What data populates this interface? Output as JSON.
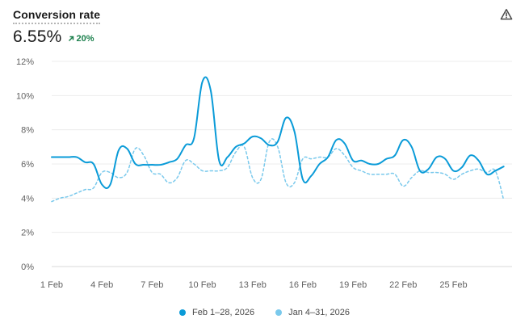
{
  "header": {
    "title": "Conversion rate",
    "value": "6.55%",
    "change": "20%",
    "warning_icon": "warning-triangle-icon",
    "change_icon": "arrow-up-right-icon",
    "change_color": "#1a7f4b"
  },
  "chart_data": {
    "type": "line",
    "title": "Conversion rate",
    "xlabel": "",
    "ylabel": "",
    "y_ticks": [
      "0%",
      "2%",
      "4%",
      "6%",
      "8%",
      "10%",
      "12%"
    ],
    "ylim": [
      0,
      12
    ],
    "x_ticks": [
      "1 Feb",
      "4 Feb",
      "7 Feb",
      "10 Feb",
      "13 Feb",
      "16 Feb",
      "19 Feb",
      "22 Feb",
      "25 Feb"
    ],
    "grid": true,
    "legend_position": "bottom-center",
    "series": [
      {
        "name": "Feb 1–28, 2026",
        "style": "solid",
        "color": "#0a9bd8",
        "x": [
          1.0,
          1.5,
          2.0,
          2.5,
          3.0,
          3.5,
          4.0,
          4.5,
          5.0,
          5.5,
          6.0,
          6.5,
          7.0,
          7.5,
          8.0,
          8.5,
          9.0,
          9.5,
          10.0,
          10.5,
          11.0,
          11.5,
          12.0,
          12.5,
          13.0,
          13.5,
          14.0,
          14.5,
          15.0,
          15.5,
          16.0,
          16.5,
          17.0,
          17.5,
          18.0,
          18.5,
          19.0,
          19.5,
          20.0,
          20.5,
          21.0,
          21.5,
          22.0,
          22.5,
          23.0,
          23.5,
          24.0,
          24.5,
          25.0,
          25.5,
          26.0,
          26.5,
          27.0,
          27.5,
          28.0
        ],
        "y": [
          6.4,
          6.4,
          6.4,
          6.4,
          6.1,
          6.0,
          4.8,
          4.8,
          6.8,
          6.9,
          6.0,
          5.95,
          5.95,
          5.95,
          6.1,
          6.3,
          7.1,
          7.5,
          10.8,
          10.3,
          6.2,
          6.4,
          7.0,
          7.2,
          7.6,
          7.5,
          7.1,
          7.3,
          8.7,
          7.9,
          5.1,
          5.3,
          6.0,
          6.4,
          7.4,
          7.2,
          6.2,
          6.2,
          6.0,
          6.0,
          6.3,
          6.5,
          7.4,
          7.0,
          5.6,
          5.7,
          6.4,
          6.3,
          5.6,
          5.8,
          6.5,
          6.2,
          5.4,
          5.6,
          5.85
        ]
      },
      {
        "name": "Jan 4–31, 2026",
        "style": "dashed",
        "color": "#7ac9ec",
        "x": [
          1.0,
          1.5,
          2.0,
          2.5,
          3.0,
          3.5,
          4.0,
          4.5,
          5.0,
          5.5,
          6.0,
          6.5,
          7.0,
          7.5,
          8.0,
          8.5,
          9.0,
          9.5,
          10.0,
          10.5,
          11.0,
          11.5,
          12.0,
          12.5,
          13.0,
          13.5,
          14.0,
          14.5,
          15.0,
          15.5,
          16.0,
          16.5,
          17.0,
          17.5,
          18.0,
          18.5,
          19.0,
          19.5,
          20.0,
          20.5,
          21.0,
          21.5,
          22.0,
          22.5,
          23.0,
          23.5,
          24.0,
          24.5,
          25.0,
          25.5,
          26.0,
          26.5,
          27.0,
          27.5,
          28.0
        ],
        "y": [
          3.8,
          4.0,
          4.1,
          4.3,
          4.5,
          4.6,
          5.5,
          5.5,
          5.2,
          5.5,
          6.9,
          6.5,
          5.5,
          5.4,
          4.9,
          5.2,
          6.2,
          6.0,
          5.6,
          5.6,
          5.6,
          5.8,
          6.7,
          7.0,
          5.2,
          5.1,
          7.3,
          7.0,
          4.9,
          4.9,
          6.3,
          6.3,
          6.4,
          6.4,
          6.9,
          6.5,
          5.8,
          5.6,
          5.4,
          5.4,
          5.4,
          5.4,
          4.7,
          5.2,
          5.6,
          5.5,
          5.5,
          5.4,
          5.1,
          5.4,
          5.6,
          5.7,
          5.5,
          5.6,
          3.9
        ]
      }
    ]
  }
}
